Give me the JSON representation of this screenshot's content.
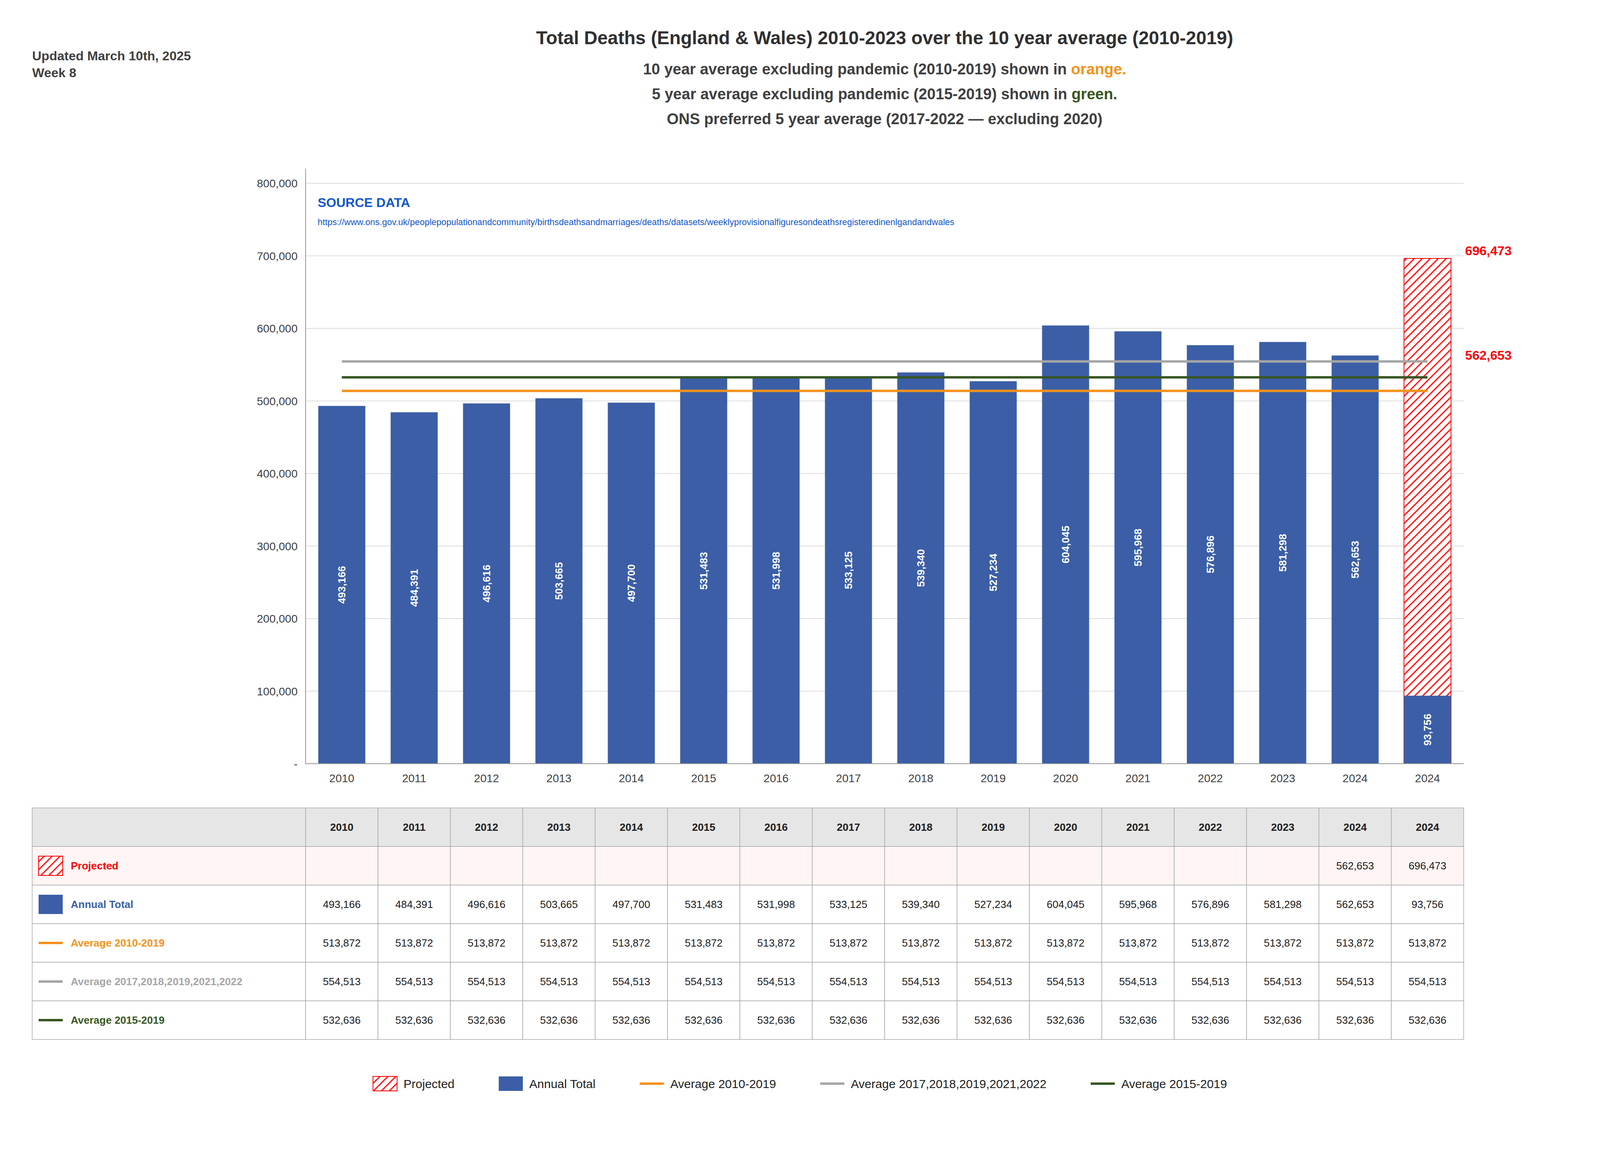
{
  "chart_data": {
    "type": "bar",
    "title": "Total Deaths (England & Wales) 2010-2023 over the 10 year average (2010-2019)",
    "subtitle": [
      [
        {
          "text": "10 year average excluding pandemic (2010-2019) shown in "
        },
        {
          "text": "orange.",
          "color": "#F5921E"
        }
      ],
      [
        {
          "text": "5 year average excluding pandemic (2015-2019) shown in "
        },
        {
          "text": "green.",
          "color": "#375623"
        }
      ],
      [
        {
          "text": "ONS preferred 5 year average (2017-2022 — excluding 2020)"
        }
      ]
    ],
    "updated": "Updated March 10th, 2025\nWeek 8",
    "source": {
      "text": "SOURCE DATA",
      "url": "https://www.ons.gov.uk/peoplepopulationandcommunity/birthsdeathsandmarriages/deaths/datasets/weeklyprovisionalfiguresondeathsregisteredinenlgandandwales",
      "color": "#1155CC"
    },
    "categories": [
      "2010",
      "2011",
      "2012",
      "2013",
      "2014",
      "2015",
      "2016",
      "2017",
      "2018",
      "2019",
      "2020",
      "2021",
      "2022",
      "2023",
      "2024",
      "2024"
    ],
    "series": [
      {
        "name": "Projected",
        "type": "bar",
        "color": "#FF0000",
        "line_style": "hatched",
        "values": [
          null,
          null,
          null,
          null,
          null,
          null,
          null,
          null,
          null,
          null,
          null,
          null,
          null,
          null,
          null,
          696473
        ]
      },
      {
        "name": "Annual Total",
        "type": "bar",
        "color": "#3B5EA6",
        "values": [
          493166,
          484391,
          496616,
          503665,
          497700,
          531483,
          531998,
          533125,
          539340,
          527234,
          604045,
          595968,
          576896,
          581298,
          562653,
          93756
        ],
        "value_labels": [
          "493,166",
          "484,391",
          "496,616",
          "503,665",
          "497,700",
          "531,483",
          "531,998",
          "533,125",
          "539,340",
          "527,234",
          "604,045",
          "595,968",
          "576,896",
          "581,298",
          "562,653",
          "93,756"
        ]
      },
      {
        "name": "Average 2010-2019",
        "type": "line",
        "color": "#F5921E",
        "values": [
          513872,
          513872,
          513872,
          513872,
          513872,
          513872,
          513872,
          513872,
          513872,
          513872,
          513872,
          513872,
          513872,
          513872,
          513872,
          513872
        ]
      },
      {
        "name": "Average 2017,2018,2019,2021,2022",
        "type": "line",
        "color": "#A6A6A6",
        "values": [
          554513,
          554513,
          554513,
          554513,
          554513,
          554513,
          554513,
          554513,
          554513,
          554513,
          554513,
          554513,
          554513,
          554513,
          554513,
          554513
        ]
      },
      {
        "name": "Average 2015-2019",
        "type": "line",
        "color": "#375623",
        "values": [
          532636,
          532636,
          532636,
          532636,
          532636,
          532636,
          532636,
          532636,
          532636,
          532636,
          532636,
          532636,
          532636,
          532636,
          532636,
          532636
        ]
      }
    ],
    "data_labels": true,
    "annotations": [
      {
        "text": "562,653",
        "y": 562653,
        "color": "red"
      },
      {
        "text": "696,473",
        "y": 696473,
        "color": "red"
      }
    ],
    "ylim": [
      0,
      820000
    ],
    "yticks": [
      {
        "value": 0,
        "label": "-"
      },
      {
        "value": 100000,
        "label": "100,000"
      },
      {
        "value": 200000,
        "label": "200,000"
      },
      {
        "value": 300000,
        "label": "300,000"
      },
      {
        "value": 400000,
        "label": "400,000"
      },
      {
        "value": 500000,
        "label": "500,000"
      },
      {
        "value": 600000,
        "label": "600,000"
      },
      {
        "value": 700000,
        "label": "700,000"
      },
      {
        "value": 800000,
        "label": "800,000"
      }
    ],
    "grid": true,
    "legend": "bottom",
    "table": {
      "rows": [
        {
          "name": "Projected",
          "cells": [
            null,
            null,
            null,
            null,
            null,
            null,
            null,
            null,
            null,
            null,
            null,
            null,
            null,
            null,
            "562,653",
            "696,473"
          ]
        },
        {
          "name": "Annual Total",
          "cells": [
            "493,166",
            "484,391",
            "496,616",
            "503,665",
            "497,700",
            "531,483",
            "531,998",
            "533,125",
            "539,340",
            "527,234",
            "604,045",
            "595,968",
            "576,896",
            "581,298",
            "562,653",
            "93,756"
          ]
        },
        {
          "name": "Average 2010-2019",
          "cells": [
            "513,872",
            "513,872",
            "513,872",
            "513,872",
            "513,872",
            "513,872",
            "513,872",
            "513,872",
            "513,872",
            "513,872",
            "513,872",
            "513,872",
            "513,872",
            "513,872",
            "513,872",
            "513,872"
          ]
        },
        {
          "name": "Average 2017,2018,2019,2021,2022",
          "cells": [
            "554,513",
            "554,513",
            "554,513",
            "554,513",
            "554,513",
            "554,513",
            "554,513",
            "554,513",
            "554,513",
            "554,513",
            "554,513",
            "554,513",
            "554,513",
            "554,513",
            "554,513",
            "554,513"
          ]
        },
        {
          "name": "Average 2015-2019",
          "cells": [
            "532,636",
            "532,636",
            "532,636",
            "532,636",
            "532,636",
            "532,636",
            "532,636",
            "532,636",
            "532,636",
            "532,636",
            "532,636",
            "532,636",
            "532,636",
            "532,636",
            "532,636",
            "532,636"
          ]
        }
      ]
    }
  }
}
